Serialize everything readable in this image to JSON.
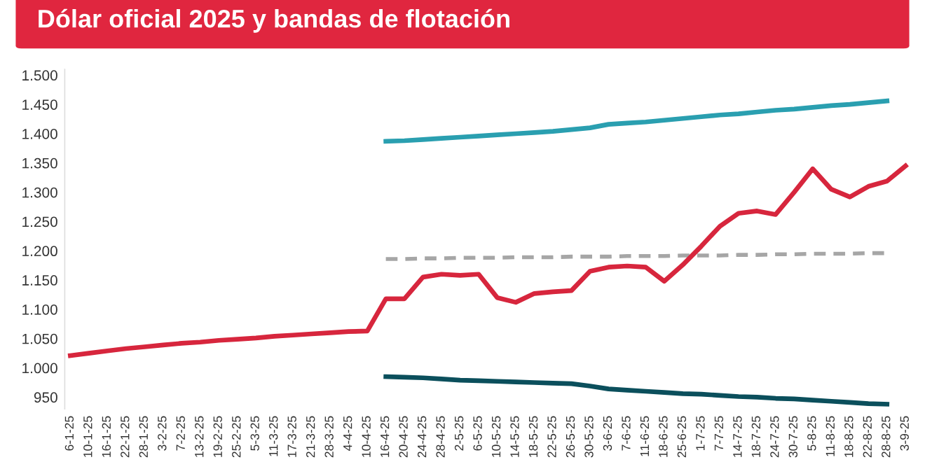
{
  "chart_data": {
    "type": "line",
    "title": "Dólar oficial 2025 y bandas de flotación",
    "categories": [
      "6-1-25",
      "10-1-25",
      "16-1-25",
      "22-1-25",
      "28-1-25",
      "3-2-25",
      "7-2-25",
      "13-2-25",
      "19-2-25",
      "25-2-25",
      "5-3-25",
      "11-3-25",
      "17-3-25",
      "21-3-25",
      "28-3-25",
      "4-4-25",
      "10-4-25",
      "16-4-25",
      "20-4-25",
      "24-4-25",
      "28-4-25",
      "2-5-25",
      "6-5-25",
      "10-5-25",
      "14-5-25",
      "18-5-25",
      "22-5-25",
      "26-5-25",
      "30-5-25",
      "3-6-25",
      "7-6-25",
      "11-6-25",
      "18-6-25",
      "25-6-25",
      "1-7-25",
      "7-7-25",
      "14-7-25",
      "18-7-25",
      "24-7-25",
      "30-7-25",
      "5-8-25",
      "11-8-25",
      "18-8-25",
      "22-8-25",
      "28-8-25",
      "3-9-25"
    ],
    "series": [
      {
        "color": "#2a9fb0",
        "line_style": "solid",
        "values": [
          null,
          null,
          null,
          null,
          null,
          null,
          null,
          null,
          null,
          null,
          null,
          null,
          null,
          null,
          null,
          null,
          null,
          1387,
          1388,
          1390,
          1392,
          1394,
          1396,
          1398,
          1400,
          1402,
          1404,
          1407,
          1410,
          1416,
          1418,
          1420,
          1423,
          1426,
          1429,
          1432,
          1434,
          1437,
          1440,
          1442,
          1445,
          1448,
          1450,
          1453,
          1456,
          null
        ]
      },
      {
        "color": "#a6a6a6",
        "line_style": "dashed",
        "values": [
          null,
          null,
          null,
          null,
          null,
          null,
          null,
          null,
          null,
          null,
          null,
          null,
          null,
          null,
          null,
          null,
          null,
          1186,
          1186,
          1187,
          1187,
          1188,
          1188,
          1188,
          1189,
          1189,
          1189,
          1190,
          1190,
          1190,
          1191,
          1191,
          1191,
          1192,
          1192,
          1192,
          1193,
          1193,
          1194,
          1194,
          1195,
          1195,
          1195,
          1196,
          1196,
          null
        ]
      },
      {
        "color": "#0b4f5c",
        "line_style": "solid",
        "values": [
          null,
          null,
          null,
          null,
          null,
          null,
          null,
          null,
          null,
          null,
          null,
          null,
          null,
          null,
          null,
          null,
          null,
          985,
          984,
          983,
          981,
          979,
          978,
          977,
          976,
          975,
          974,
          973,
          969,
          964,
          962,
          960,
          958,
          956,
          955,
          953,
          951,
          950,
          948,
          947,
          945,
          943,
          941,
          939,
          938,
          null
        ]
      },
      {
        "color": "#d7263d",
        "line_style": "solid",
        "values": [
          1021,
          1025,
          1029,
          1033,
          1036,
          1039,
          1042,
          1044,
          1047,
          1049,
          1051,
          1054,
          1056,
          1058,
          1060,
          1062,
          1063,
          1118,
          1118,
          1155,
          1160,
          1158,
          1160,
          1120,
          1112,
          1127,
          1130,
          1132,
          1165,
          1172,
          1174,
          1172,
          1148,
          1176,
          1208,
          1242,
          1264,
          1268,
          1262,
          1300,
          1340,
          1305,
          1292,
          1310,
          1319,
          1345
        ]
      }
    ],
    "ylim": [
      930,
      1510
    ],
    "yticks": [
      950,
      {
        "value": 1000,
        "label": "1.000"
      },
      {
        "value": 1050,
        "label": "1.050"
      },
      {
        "value": 1100,
        "label": "1.100"
      },
      {
        "value": 1150,
        "label": "1.150"
      },
      {
        "value": 1200,
        "label": "1.200"
      },
      {
        "value": 1250,
        "label": "1.250"
      },
      {
        "value": 1300,
        "label": "1.300"
      },
      {
        "value": 1350,
        "label": "1.350"
      },
      {
        "value": 1400,
        "label": "1.400"
      },
      {
        "value": 1450,
        "label": "1.450"
      },
      {
        "value": 1500,
        "label": "1.500"
      }
    ],
    "grid": false,
    "marker": "none"
  }
}
